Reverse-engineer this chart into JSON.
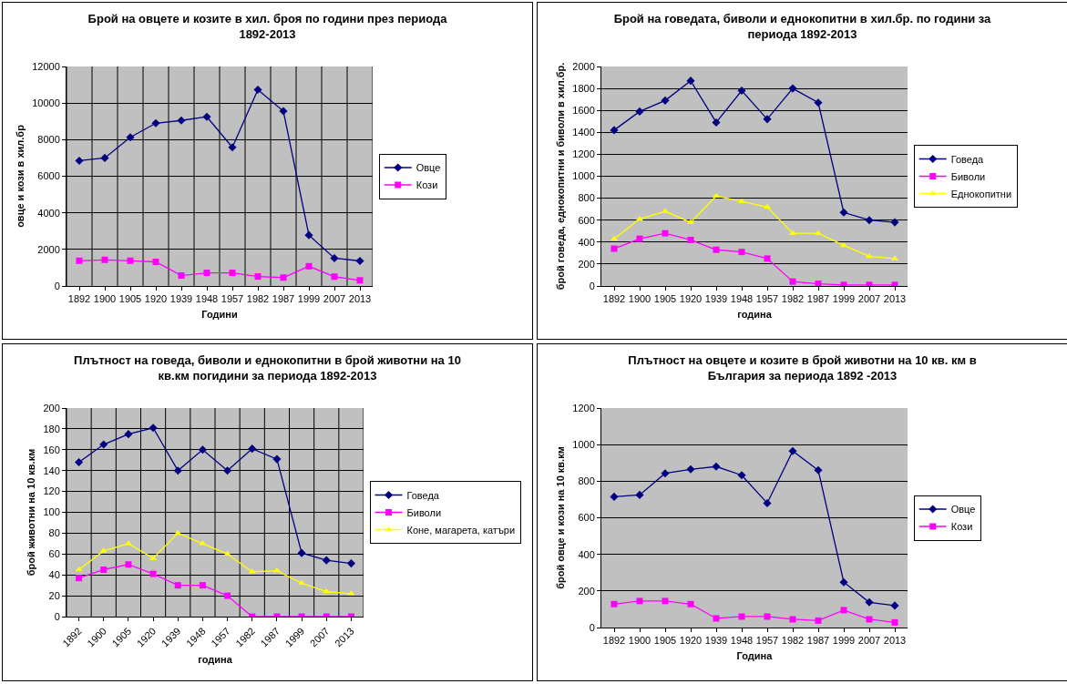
{
  "chart_data": [
    {
      "type": "line",
      "title": "Брой на овцете и козите в хил. броя по години през периода 1892-2013",
      "xlabel": "Години",
      "ylabel": "овце и кози в хил.бр",
      "categories": [
        "1892",
        "1900",
        "1905",
        "1920",
        "1939",
        "1948",
        "1957",
        "1982",
        "1987",
        "1999",
        "2007",
        "2013"
      ],
      "series": [
        {
          "name": "Овце",
          "color": "#000080",
          "marker": "diamond",
          "values": [
            6850,
            7000,
            8130,
            8900,
            9050,
            9250,
            7580,
            10730,
            9560,
            2780,
            1520,
            1370
          ]
        },
        {
          "name": "Кози",
          "color": "#ff00ff",
          "marker": "square",
          "values": [
            1380,
            1430,
            1380,
            1320,
            570,
            720,
            720,
            520,
            460,
            1080,
            510,
            310
          ]
        }
      ],
      "ylim": [
        0,
        12000
      ],
      "yticks": [
        0,
        2000,
        4000,
        6000,
        8000,
        10000,
        12000
      ],
      "grid": true,
      "legend": "right"
    },
    {
      "type": "line",
      "title": "Брой на говедата, биволи и еднокопитни в хил.бр. по години за периода 1892-2013",
      "xlabel": "година",
      "ylabel": "брой говеда, еднокопитни и биволи в хил.бр.",
      "categories": [
        "1892",
        "1900",
        "1905",
        "1920",
        "1939",
        "1948",
        "1957",
        "1982",
        "1987",
        "1999",
        "2007",
        "2013"
      ],
      "series": [
        {
          "name": "Говеда",
          "color": "#000080",
          "marker": "diamond",
          "values": [
            1420,
            1590,
            1690,
            1870,
            1490,
            1780,
            1520,
            1800,
            1670,
            670,
            600,
            580
          ]
        },
        {
          "name": "Биволи",
          "color": "#ff00ff",
          "marker": "square",
          "values": [
            340,
            430,
            480,
            420,
            330,
            310,
            250,
            40,
            20,
            10,
            10,
            10
          ]
        },
        {
          "name": "Еднокопитни",
          "color": "#ffff00",
          "marker": "triangle",
          "values": [
            430,
            610,
            680,
            580,
            820,
            770,
            720,
            480,
            480,
            370,
            270,
            250
          ]
        }
      ],
      "ylim": [
        0,
        2000
      ],
      "yticks": [
        0,
        200,
        400,
        600,
        800,
        1000,
        1200,
        1400,
        1600,
        1800,
        2000
      ],
      "grid": "y",
      "legend": "right"
    },
    {
      "type": "line",
      "title": "Плътност на говеда, биволи и еднокопитни в брой животни на 10 кв.км погидини за периода 1892-2013",
      "xlabel": "година",
      "ylabel": "брой животни на 10 кв.км",
      "categories": [
        "1892",
        "1900",
        "1905",
        "1920",
        "1939",
        "1948",
        "1957",
        "1982",
        "1987",
        "1999",
        "2007",
        "2013"
      ],
      "series": [
        {
          "name": "Говеда",
          "color": "#000080",
          "marker": "diamond",
          "values": [
            148,
            165,
            175,
            181,
            140,
            160,
            140,
            161,
            151,
            61,
            54,
            51
          ]
        },
        {
          "name": "Биволи",
          "color": "#ff00ff",
          "marker": "square",
          "values": [
            37,
            45,
            50,
            41,
            30,
            30,
            20,
            0,
            0,
            0,
            0,
            0
          ]
        },
        {
          "name": "Коне, магарета, катъри",
          "color": "#ffff00",
          "marker": "triangle",
          "values": [
            45,
            63,
            70,
            56,
            80,
            70,
            60,
            43,
            44,
            32,
            24,
            22
          ]
        }
      ],
      "ylim": [
        0,
        200
      ],
      "yticks": [
        0,
        20,
        40,
        60,
        80,
        100,
        120,
        140,
        160,
        180,
        200
      ],
      "grid": true,
      "legend": "right"
    },
    {
      "type": "line",
      "title": "Плътност на овцете и козите в брой животни на 10 кв. км в България за периода 1892 -2013",
      "xlabel": "Година",
      "ylabel": "брой овце и кози на 10 кв.км",
      "categories": [
        "1892",
        "1900",
        "1905",
        "1920",
        "1939",
        "1948",
        "1957",
        "1982",
        "1987",
        "1999",
        "2007",
        "2013"
      ],
      "series": [
        {
          "name": "Овце",
          "color": "#000080",
          "marker": "diamond",
          "values": [
            715,
            725,
            843,
            865,
            880,
            833,
            680,
            965,
            860,
            248,
            138,
            120
          ]
        },
        {
          "name": "Кози",
          "color": "#ff00ff",
          "marker": "square",
          "values": [
            128,
            145,
            145,
            128,
            50,
            60,
            60,
            45,
            38,
            95,
            45,
            28
          ]
        }
      ],
      "ylim": [
        0,
        1200
      ],
      "yticks": [
        0,
        200,
        400,
        600,
        800,
        1000,
        1200
      ],
      "grid": "y",
      "legend": "right"
    }
  ]
}
